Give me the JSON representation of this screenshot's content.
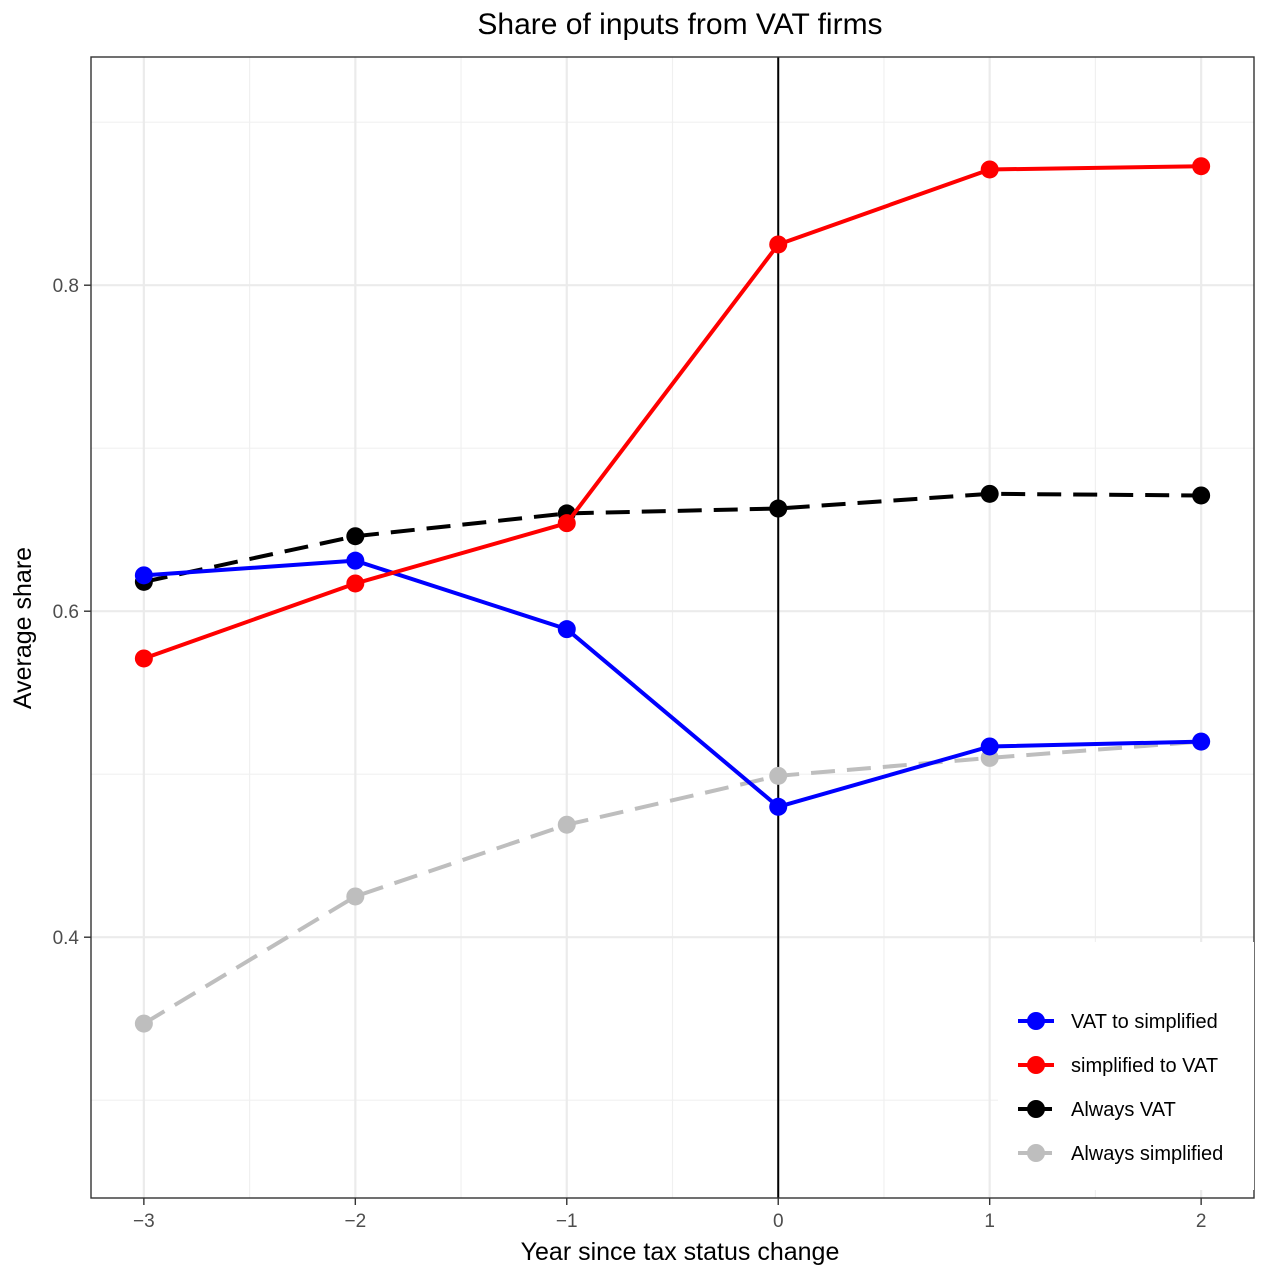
{
  "chart_data": {
    "type": "line",
    "title": "Share of inputs from VAT firms",
    "xlabel": "Year since tax status change",
    "ylabel": "Average share",
    "x": [
      -3,
      -2,
      -1,
      0,
      1,
      2
    ],
    "x_tick_labels": [
      "−3",
      "−2",
      "−1",
      "0",
      "1",
      "2"
    ],
    "y_ticks": [
      0.4,
      0.6,
      0.8
    ],
    "y_tick_labels": [
      "0.4",
      "0.6",
      "0.8"
    ],
    "xlim": [
      -3.25,
      2.25
    ],
    "ylim": [
      0.24,
      0.94
    ],
    "grid": true,
    "vertical_reference_line_x": 0,
    "legend_position": "bottom-right",
    "series": [
      {
        "name": "VAT to simplified",
        "color": "#0000ff",
        "linestyle": "solid",
        "values": [
          0.622,
          0.631,
          0.589,
          0.48,
          0.517,
          0.52
        ]
      },
      {
        "name": "simplified to VAT",
        "color": "#ff0000",
        "linestyle": "solid",
        "values": [
          0.571,
          0.617,
          0.654,
          0.825,
          0.871,
          0.873
        ]
      },
      {
        "name": "Always VAT",
        "color": "#000000",
        "linestyle": "dashed",
        "values": [
          0.618,
          0.646,
          0.66,
          0.663,
          0.672,
          0.671
        ]
      },
      {
        "name": "Always simplified",
        "color": "#bebebe",
        "linestyle": "dashed",
        "values": [
          0.347,
          0.425,
          0.469,
          0.499,
          0.51,
          0.52
        ]
      }
    ]
  }
}
